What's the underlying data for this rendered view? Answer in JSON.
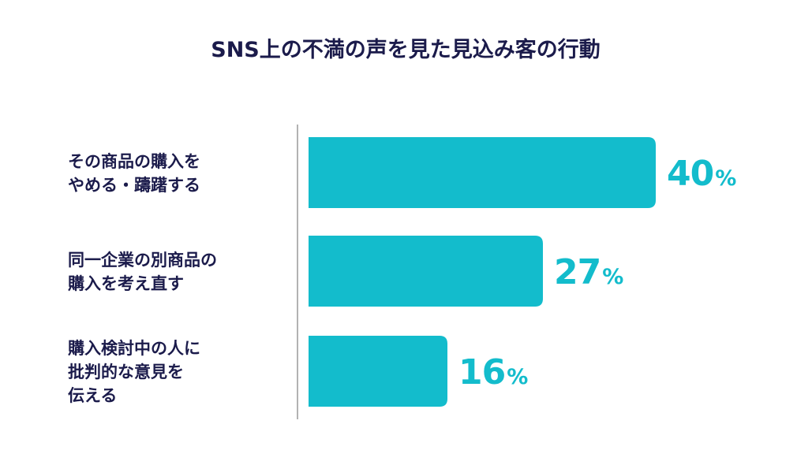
{
  "chart_data": {
    "type": "bar",
    "orientation": "horizontal",
    "title": "SNS上の不満の声を見た見込み客の行動",
    "categories": [
      [
        "その商品の購入を",
        "やめる・躊躇する"
      ],
      [
        "同一企業の別商品の",
        "購入を考え直す"
      ],
      [
        "購入検討中の人に",
        "批判的な意見を",
        "伝える"
      ]
    ],
    "values": [
      40,
      27,
      16
    ],
    "unit": "%",
    "grid": false,
    "legend": "none",
    "colors": {
      "bar": "#13bccc",
      "value_text": "#13bccc",
      "title_text": "#1b1b4b",
      "label_text": "#1b1b4b",
      "axis_line": "#999999"
    }
  }
}
